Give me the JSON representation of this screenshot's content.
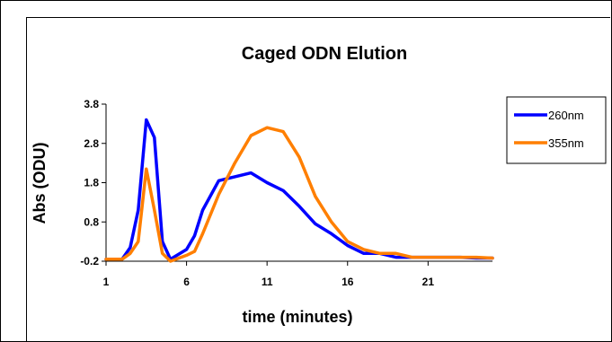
{
  "chart_data": {
    "type": "line",
    "title": "Caged ODN Elution",
    "xlabel": "time (minutes)",
    "ylabel": "Abs (ODU)",
    "xlim": [
      1,
      25
    ],
    "ylim": [
      -0.2,
      3.8
    ],
    "x_ticks": [
      "1",
      "6",
      "11",
      "16",
      "21"
    ],
    "y_ticks": [
      "3.8",
      "2.8",
      "1.8",
      "0.8",
      "-0.2"
    ],
    "x": [
      1,
      2,
      2.5,
      3,
      3.5,
      4,
      4.5,
      5,
      6,
      6.5,
      7,
      8,
      9,
      10,
      11,
      12,
      13,
      14,
      15,
      16,
      17,
      18,
      19,
      20,
      21,
      22,
      23,
      24,
      25
    ],
    "legend_position": "right",
    "series": [
      {
        "name": "260nm",
        "color": "#0000ff",
        "values": [
          -0.15,
          -0.15,
          0.15,
          1.1,
          3.4,
          2.95,
          0.3,
          -0.15,
          0.1,
          0.45,
          1.1,
          1.85,
          1.95,
          2.05,
          1.8,
          1.6,
          1.2,
          0.75,
          0.5,
          0.2,
          0.0,
          0.0,
          -0.1,
          -0.1,
          -0.1,
          -0.1,
          -0.1,
          -0.12,
          -0.12
        ]
      },
      {
        "name": "355nm",
        "color": "#ff7f00",
        "values": [
          -0.15,
          -0.15,
          0.0,
          0.3,
          2.15,
          1.1,
          0.0,
          -0.2,
          -0.05,
          0.05,
          0.5,
          1.5,
          2.3,
          3.0,
          3.2,
          3.1,
          2.45,
          1.45,
          0.8,
          0.3,
          0.1,
          0.0,
          0.0,
          -0.1,
          -0.1,
          -0.1,
          -0.1,
          -0.1,
          -0.12
        ]
      }
    ]
  }
}
